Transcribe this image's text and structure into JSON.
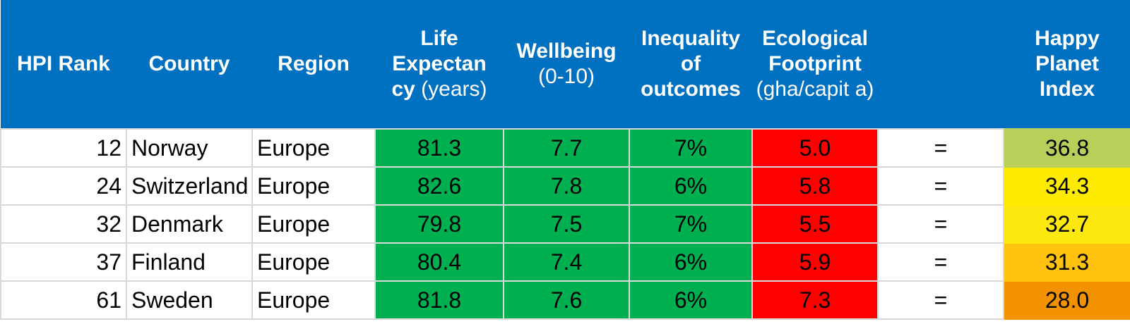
{
  "colors": {
    "header_bg": "#0070c0",
    "good": "#00b050",
    "bad": "#ff0000"
  },
  "headers": {
    "rank": "HPI Rank",
    "country": "Country",
    "region": "Region",
    "life_bold": "Life Expectan cy",
    "life_unit": " (years)",
    "wellbeing_bold": "Wellbeing",
    "wellbeing_unit": "(0-10)",
    "inequality": "Inequality of outcomes",
    "eco_bold": "Ecological Footprint",
    "eco_unit": "(gha/capit a)",
    "trend": "",
    "hpi": "Happy Planet Index"
  },
  "rows": [
    {
      "rank": "12",
      "country": "Norway",
      "region": "Europe",
      "life": "81.3",
      "wellbeing": "7.7",
      "inequality": "7%",
      "eco": "5.0",
      "trend": "=",
      "hpi": "36.8",
      "hpi_color": "#b8cf5a"
    },
    {
      "rank": "24",
      "country": "Switzerland",
      "region": "Europe",
      "life": "82.6",
      "wellbeing": "7.8",
      "inequality": "6%",
      "eco": "5.8",
      "trend": "=",
      "hpi": "34.3",
      "hpi_color": "#ffeb00"
    },
    {
      "rank": "32",
      "country": "Denmark",
      "region": "Europe",
      "life": "79.8",
      "wellbeing": "7.5",
      "inequality": "7%",
      "eco": "5.5",
      "trend": "=",
      "hpi": "32.7",
      "hpi_color": "#fde910"
    },
    {
      "rank": "37",
      "country": "Finland",
      "region": "Europe",
      "life": "80.4",
      "wellbeing": "7.4",
      "inequality": "6%",
      "eco": "5.9",
      "trend": "=",
      "hpi": "31.3",
      "hpi_color": "#ffc20e"
    },
    {
      "rank": "61",
      "country": "Sweden",
      "region": "Europe",
      "life": "81.8",
      "wellbeing": "7.6",
      "inequality": "6%",
      "eco": "7.3",
      "trend": "=",
      "hpi": "28.0",
      "hpi_color": "#f39200"
    }
  ]
}
